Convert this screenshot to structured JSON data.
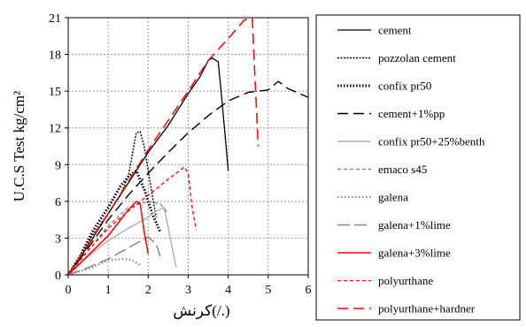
{
  "chart_data": {
    "type": "line",
    "xlabel": "(./)کرنش",
    "ylabel": "U.C.S Test  kg/cm²",
    "xlim": [
      0,
      6
    ],
    "ylim": [
      0,
      21
    ],
    "xticks": [
      "0",
      "1",
      "2",
      "3",
      "4",
      "5",
      "6"
    ],
    "yticks": [
      "0",
      "3",
      "6",
      "9",
      "12",
      "15",
      "18",
      "21"
    ],
    "grid": true,
    "legend_position": "right",
    "series": [
      {
        "name": "cement",
        "color": "#000000",
        "dash": "solid",
        "width": 1.3,
        "points": [
          [
            0,
            0
          ],
          [
            0.5,
            2.4
          ],
          [
            1,
            5
          ],
          [
            1.5,
            7.5
          ],
          [
            2,
            10
          ],
          [
            2.5,
            12.2
          ],
          [
            3,
            14.8
          ],
          [
            3.3,
            16.2
          ],
          [
            3.5,
            17.5
          ],
          [
            3.6,
            17.7
          ],
          [
            3.75,
            17.4
          ],
          [
            3.85,
            14
          ],
          [
            4,
            8.5
          ]
        ]
      },
      {
        "name": "pozzolan cement",
        "color": "#000000",
        "dash": "2 1.5",
        "width": 1.4,
        "points": [
          [
            0,
            0
          ],
          [
            0.3,
            1.6
          ],
          [
            0.6,
            3.2
          ],
          [
            1,
            5
          ],
          [
            1.3,
            6.5
          ],
          [
            1.5,
            8
          ],
          [
            1.7,
            11.6
          ],
          [
            1.8,
            11.7
          ],
          [
            1.9,
            10.5
          ],
          [
            2,
            8.5
          ],
          [
            2.1,
            6.5
          ],
          [
            2.2,
            4.7
          ]
        ]
      },
      {
        "name": "confix pr50",
        "color": "#000000",
        "dash": "1.5 2",
        "width": 3,
        "points": [
          [
            0,
            0
          ],
          [
            0.3,
            1.5
          ],
          [
            0.6,
            3.5
          ],
          [
            1,
            5.5
          ],
          [
            1.3,
            7.2
          ],
          [
            1.5,
            8
          ],
          [
            1.7,
            8.5
          ],
          [
            1.9,
            7
          ],
          [
            2.1,
            5
          ],
          [
            2.3,
            3.5
          ]
        ]
      },
      {
        "name": "cement+1%pp",
        "color": "#000000",
        "dash": "12 6",
        "width": 1.4,
        "points": [
          [
            0,
            0
          ],
          [
            0.5,
            2.2
          ],
          [
            1,
            4.5
          ],
          [
            1.5,
            6.5
          ],
          [
            2,
            8.3
          ],
          [
            2.5,
            10
          ],
          [
            3,
            11.6
          ],
          [
            3.5,
            13
          ],
          [
            4,
            14.2
          ],
          [
            4.5,
            14.9
          ],
          [
            5,
            15.1
          ],
          [
            5.25,
            15.8
          ],
          [
            5.5,
            15.2
          ],
          [
            6,
            14.5
          ]
        ]
      },
      {
        "name": "confix pr50+25%benth",
        "color": "#b4b4b4",
        "dash": "solid",
        "width": 1.5,
        "points": [
          [
            0,
            0
          ],
          [
            0.5,
            1.5
          ],
          [
            1,
            2.8
          ],
          [
            1.5,
            3.8
          ],
          [
            2,
            4.7
          ],
          [
            2.2,
            5.2
          ],
          [
            2.4,
            5.5
          ],
          [
            2.55,
            3
          ],
          [
            2.7,
            0.6
          ]
        ]
      },
      {
        "name": "emaco s45",
        "color": "#777777",
        "dash": "4 3",
        "width": 1.2,
        "points": [
          [
            0,
            0
          ],
          [
            0.5,
            2
          ],
          [
            1,
            4
          ],
          [
            1.5,
            5.5
          ],
          [
            2,
            6
          ],
          [
            2.3,
            5.8
          ],
          [
            2.5,
            5
          ]
        ]
      },
      {
        "name": "galena",
        "color": "#888888",
        "dash": "1.5 2.5",
        "width": 2.2,
        "points": [
          [
            0,
            0
          ],
          [
            0.3,
            0.3
          ],
          [
            0.6,
            0.6
          ],
          [
            1,
            1.2
          ],
          [
            1.4,
            1.3
          ],
          [
            1.6,
            1.2
          ],
          [
            1.8,
            0.8
          ]
        ]
      },
      {
        "name": "galena+1%lime",
        "color": "#888888",
        "dash": "14 5",
        "width": 1.5,
        "points": [
          [
            0,
            0
          ],
          [
            0.5,
            0.6
          ],
          [
            1,
            1.3
          ],
          [
            1.5,
            2.2
          ],
          [
            2,
            3.1
          ],
          [
            2.2,
            2.5
          ],
          [
            2.3,
            1.5
          ]
        ]
      },
      {
        "name": "galena+3%lime",
        "color": "#ff0000",
        "dash": "solid",
        "width": 1.5,
        "points": [
          [
            0,
            0
          ],
          [
            0.5,
            1.6
          ],
          [
            1,
            3.2
          ],
          [
            1.5,
            5.3
          ],
          [
            1.7,
            6
          ],
          [
            1.8,
            5.8
          ],
          [
            1.9,
            3.5
          ],
          [
            2,
            1.7
          ]
        ]
      },
      {
        "name": "polyurthane",
        "color": "#ff0000",
        "dash": "4 3",
        "width": 1.3,
        "points": [
          [
            0,
            0
          ],
          [
            0.5,
            2
          ],
          [
            1,
            3.8
          ],
          [
            1.5,
            5.2
          ],
          [
            2,
            6.5
          ],
          [
            2.5,
            7.8
          ],
          [
            2.9,
            8.8
          ],
          [
            3,
            8.3
          ],
          [
            3.1,
            5.5
          ],
          [
            3.2,
            3.7
          ]
        ]
      },
      {
        "name": "polyurthane+hardner",
        "color": "#ff0000",
        "dash": "12 6",
        "width": 1.5,
        "points": [
          [
            0,
            0
          ],
          [
            1,
            5
          ],
          [
            2,
            10.2
          ],
          [
            3,
            15
          ],
          [
            3.5,
            17.5
          ],
          [
            4,
            19.3
          ],
          [
            4.4,
            20.8
          ],
          [
            4.6,
            21
          ],
          [
            4.75,
            10.5
          ]
        ]
      }
    ]
  }
}
